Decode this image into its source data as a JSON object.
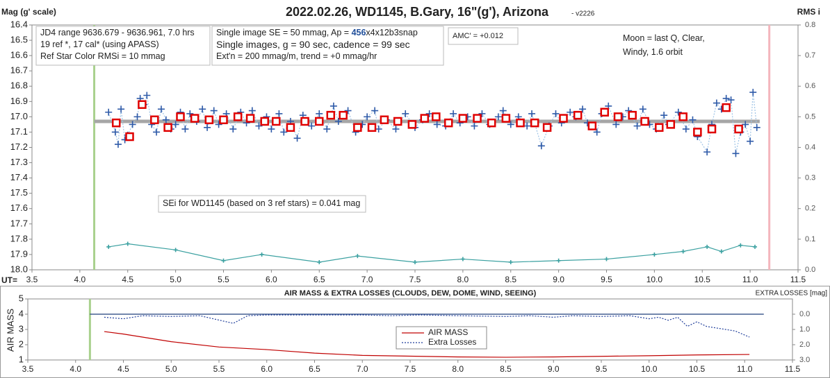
{
  "chart_data": [
    {
      "type": "line",
      "title": "2022.02.26, WD1145, B.Gary, 16\"(g'), Arizona",
      "subtitle": "- v2226",
      "y_label": "Mag (g' scale)",
      "y2_label": "RMS i",
      "x_label": "UT=",
      "xlim": [
        3.5,
        11.5
      ],
      "xticks": [
        3.5,
        {
          "value": 4,
          "label": "4.0"
        },
        4.5,
        {
          "value": 5,
          "label": "5.0"
        },
        5.5,
        {
          "value": 6,
          "label": "6.0"
        },
        6.5,
        {
          "value": 7,
          "label": "7.0"
        },
        7.5,
        {
          "value": 8,
          "label": "8.0"
        },
        8.5,
        {
          "value": 9,
          "label": "9.0"
        },
        9.5,
        {
          "value": 10,
          "label": "10.0"
        },
        10.5,
        {
          "value": 11,
          "label": "11.0"
        },
        11.5
      ],
      "ylim": [
        18.0,
        16.4
      ],
      "yticks": [
        16.4,
        16.5,
        16.6,
        16.7,
        16.8,
        16.9,
        {
          "value": 17,
          "label": "17.0"
        },
        17.1,
        17.2,
        17.3,
        17.4,
        17.5,
        17.6,
        17.7,
        17.8,
        17.9,
        {
          "value": 18,
          "label": "18.0"
        }
      ],
      "y2lim": [
        0,
        0.8
      ],
      "y2ticks": [
        {
          "value": 0,
          "label": "0.0"
        },
        0.1,
        0.2,
        0.3,
        0.4,
        0.5,
        0.6,
        0.7,
        0.8
      ],
      "vlines": [
        {
          "x": 4.15,
          "color": "#a9d18e"
        },
        {
          "x": 11.2,
          "color": "#f4b6bd"
        }
      ],
      "series": [
        {
          "color": "#a6a6a6",
          "line": "solid",
          "width": 5,
          "x": [
            4.15,
            11.1
          ],
          "values": [
            17.03,
            17.03
          ]
        },
        {
          "color": "#2e5aa8",
          "line_color": "#9dc3e6",
          "marker": "plus",
          "line": "dotted",
          "x": [
            4.3,
            4.37,
            4.4,
            4.43,
            4.47,
            4.5,
            4.55,
            4.6,
            4.63,
            4.67,
            4.7,
            4.75,
            4.8,
            4.85,
            4.9,
            4.95,
            5.0,
            5.05,
            5.1,
            5.15,
            5.22,
            5.28,
            5.33,
            5.4,
            5.45,
            5.53,
            5.6,
            5.68,
            5.74,
            5.8,
            5.87,
            5.95,
            6.0,
            6.08,
            6.13,
            6.2,
            6.27,
            6.33,
            6.42,
            6.5,
            6.58,
            6.65,
            6.7,
            6.8,
            6.88,
            6.95,
            7.0,
            7.08,
            7.12,
            7.2,
            7.3,
            7.4,
            7.5,
            7.58,
            7.65,
            7.73,
            7.82,
            7.9,
            7.97,
            8.05,
            8.12,
            8.2,
            8.28,
            8.37,
            8.42,
            8.5,
            8.58,
            8.67,
            8.72,
            8.82,
            8.9,
            8.97,
            9.03,
            9.12,
            9.18,
            9.25,
            9.3,
            9.4,
            9.45,
            9.52,
            9.6,
            9.67,
            9.73,
            9.82,
            9.88,
            9.95,
            10.02,
            10.1,
            10.15,
            10.25,
            10.33,
            10.4,
            10.45,
            10.55,
            10.6,
            10.65,
            10.7,
            10.75,
            10.8,
            10.85,
            10.9,
            10.95,
            11.0,
            11.03,
            11.07
          ],
          "values": [
            16.97,
            17.1,
            17.18,
            16.95,
            17.15,
            17.12,
            17.05,
            17.0,
            16.88,
            16.92,
            16.86,
            17.05,
            17.1,
            16.95,
            17.02,
            17.08,
            17.05,
            16.97,
            17.08,
            16.98,
            17.03,
            16.95,
            17.07,
            16.96,
            17.05,
            16.98,
            17.08,
            16.97,
            17.04,
            16.96,
            17.06,
            17.0,
            17.08,
            16.98,
            17.1,
            17.03,
            17.14,
            16.99,
            17.06,
            16.98,
            17.08,
            16.93,
            17.03,
            16.96,
            17.1,
            17.05,
            17.0,
            16.96,
            17.08,
            17.02,
            17.08,
            16.98,
            17.07,
            17.02,
            16.98,
            17.05,
            17.06,
            16.98,
            17.04,
            17.0,
            17.06,
            16.98,
            17.05,
            17.0,
            16.96,
            17.05,
            17.0,
            17.06,
            16.98,
            17.19,
            17.06,
            16.98,
            17.04,
            16.97,
            17.0,
            16.95,
            17.04,
            17.1,
            16.98,
            16.93,
            17.05,
            17.0,
            16.96,
            17.06,
            16.95,
            17.05,
            17.08,
            16.99,
            17.05,
            16.97,
            17.08,
            17.02,
            17.13,
            17.23,
            17.05,
            16.91,
            16.95,
            16.88,
            16.89,
            17.24,
            17.1,
            17.05,
            17.16,
            16.84,
            17.07
          ]
        },
        {
          "color": "#e00000",
          "marker": "square",
          "x": [
            4.38,
            4.52,
            4.65,
            4.78,
            4.92,
            5.05,
            5.2,
            5.35,
            5.5,
            5.65,
            5.78,
            5.93,
            6.05,
            6.2,
            6.35,
            6.5,
            6.62,
            6.75,
            6.9,
            7.05,
            7.18,
            7.32,
            7.47,
            7.6,
            7.72,
            7.85,
            8.0,
            8.15,
            8.3,
            8.45,
            8.6,
            8.75,
            8.88,
            9.05,
            9.2,
            9.35,
            9.48,
            9.62,
            9.77,
            9.9,
            10.05,
            10.17,
            10.3,
            10.45,
            10.6,
            10.75,
            10.88
          ],
          "values": [
            17.04,
            17.13,
            16.92,
            17.02,
            17.07,
            17.0,
            17.01,
            17.02,
            17.02,
            17.0,
            17.01,
            17.03,
            17.03,
            17.07,
            17.03,
            17.03,
            16.99,
            16.99,
            17.07,
            17.07,
            17.02,
            17.03,
            17.05,
            17.01,
            17.0,
            17.04,
            17.01,
            17.01,
            17.04,
            17.01,
            17.04,
            17.04,
            17.07,
            17.01,
            16.99,
            17.06,
            16.97,
            17.0,
            16.99,
            17.03,
            17.07,
            17.05,
            17.0,
            17.1,
            17.08,
            16.94,
            17.08
          ]
        },
        {
          "color": "#3aa0a0",
          "marker": "plus",
          "line": "solid",
          "axis": "y2",
          "x": [
            4.3,
            4.5,
            5.0,
            5.5,
            5.9,
            6.5,
            6.9,
            7.5,
            8.0,
            8.5,
            9.0,
            9.5,
            10.0,
            10.3,
            10.55,
            10.7,
            10.9,
            11.05
          ],
          "values": [
            0.075,
            0.085,
            0.065,
            0.03,
            0.05,
            0.025,
            0.045,
            0.025,
            0.035,
            0.025,
            0.03,
            0.035,
            0.05,
            0.06,
            0.075,
            0.06,
            0.08,
            0.075
          ]
        }
      ],
      "annotations": [
        {
          "lines": [
            [
              "JD4 range 9636.679 - 9636.961, 7.0 hrs"
            ],
            [
              "19 ref *, 17 cal* (using APASS)"
            ],
            [
              "Ref Star Color RMSi = 10 mmag"
            ]
          ]
        },
        {
          "lines": [
            [
              "Single image SE = 50 mmag, Ap = ",
              "456",
              "x4x12b3snap"
            ],
            [
              "Single images, g = 90 sec, cadence = 99 sec"
            ],
            [
              "Ext'n = 200 mmag/m, trend = +0 mmag/hr"
            ]
          ]
        },
        {
          "lines": [
            [
              "AMC' = +0.012"
            ]
          ]
        },
        {
          "lines": [
            [
              "Moon = last Q, Clear,"
            ],
            [
              "Windy, 1.6 orbit"
            ]
          ]
        },
        {
          "lines": [
            [
              "SEi for WD1145 (based on 3 ref stars) = 0.041 mag"
            ]
          ]
        }
      ]
    },
    {
      "type": "line",
      "title": "AIR MASS & EXTRA LOSSES (CLOUDS, DEW, DOME, WIND, SEEING)",
      "y_label": "AIR MASS",
      "y2_label": "EXTRA LOSSES [mag]",
      "xlim": [
        3.5,
        11.5
      ],
      "xticks": [
        3.5,
        {
          "value": 4,
          "label": "4.0"
        },
        4.5,
        {
          "value": 5,
          "label": "5.0"
        },
        5.5,
        {
          "value": 6,
          "label": "6.0"
        },
        6.5,
        {
          "value": 7,
          "label": "7.0"
        },
        7.5,
        {
          "value": 8,
          "label": "8.0"
        },
        8.5,
        {
          "value": 9,
          "label": "9.0"
        },
        9.5,
        {
          "value": 10,
          "label": "10.0"
        },
        10.5,
        {
          "value": 11,
          "label": "11.0"
        },
        11.5
      ],
      "ylim": [
        1,
        5
      ],
      "yticks": [
        1,
        2,
        3,
        4,
        5
      ],
      "y2lim": [
        3,
        -1
      ],
      "y2ticks": [
        {
          "value": 0,
          "label": "0.0"
        },
        {
          "value": 1,
          "label": "1.0"
        },
        {
          "value": 2,
          "label": "2.0"
        },
        {
          "value": 3,
          "label": "3.0"
        }
      ],
      "vlines": [
        {
          "x": 4.15,
          "color": "#a9d18e"
        }
      ],
      "hlines": [
        {
          "y2": 0,
          "x": [
            4.15,
            11.2
          ],
          "color": "#1f3d7a"
        }
      ],
      "legend": "center",
      "series": [
        {
          "name": "AIR MASS",
          "color": "#c00000",
          "line": "solid",
          "x": [
            4.3,
            4.5,
            5.0,
            5.5,
            6.0,
            6.5,
            7.0,
            7.5,
            8.0,
            8.5,
            9.0,
            9.5,
            10.0,
            10.5,
            11.05
          ],
          "values": [
            2.86,
            2.7,
            2.2,
            1.85,
            1.68,
            1.45,
            1.3,
            1.25,
            1.2,
            1.18,
            1.2,
            1.24,
            1.28,
            1.33,
            1.36
          ]
        },
        {
          "name": "Extra Losses",
          "color": "#1f3d9a",
          "line": "dotted",
          "axis": "y2",
          "x": [
            4.3,
            4.5,
            4.7,
            5.0,
            5.3,
            5.65,
            5.8,
            6.0,
            6.5,
            7.0,
            7.3,
            7.6,
            8.0,
            8.5,
            8.75,
            9.0,
            9.2,
            9.5,
            9.8,
            10.0,
            10.1,
            10.2,
            10.3,
            10.4,
            10.5,
            10.6,
            10.7,
            10.8,
            10.9,
            11.05
          ],
          "values": [
            0.2,
            0.3,
            0.1,
            0.15,
            0.1,
            0.6,
            0.1,
            0.05,
            0.05,
            0.05,
            0.1,
            0.05,
            0.1,
            0.15,
            0.1,
            0.2,
            0.1,
            0.15,
            0.1,
            0.3,
            0.2,
            0.4,
            0.2,
            0.8,
            0.5,
            0.8,
            0.9,
            1.0,
            1.1,
            1.5
          ]
        }
      ]
    }
  ]
}
